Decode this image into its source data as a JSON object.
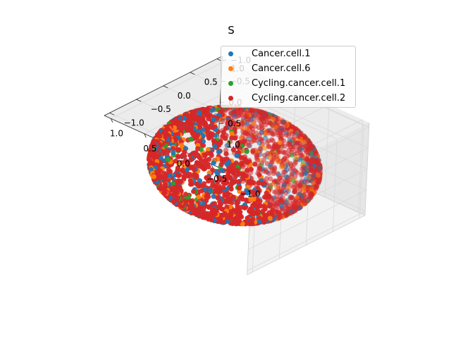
{
  "chart_data": {
    "type": "scatter",
    "projection": "3d",
    "title": "S",
    "xlabel": "",
    "ylabel": "",
    "zlabel": "",
    "xlim": [
      -1.1,
      1.1
    ],
    "ylim": [
      -1.1,
      1.1
    ],
    "zlim": [
      -1.1,
      1.1
    ],
    "x_ticks": [
      "−1.0",
      "−0.5",
      "0.0",
      "0.5",
      "1.0"
    ],
    "y_ticks": [
      "−1.0",
      "−0.5",
      "0.0",
      "0.5",
      "1.0"
    ],
    "z_ticks": [
      "−1.0",
      "−0.5",
      "0.0",
      "0.5",
      "1.0"
    ],
    "grid": true,
    "legend_position": "top-right",
    "shape": "points distributed on the surface of a unit sphere",
    "series": [
      {
        "name": "Cancer.cell.1",
        "color": "#1f77b4"
      },
      {
        "name": "Cancer.cell.6",
        "color": "#ff7f0e"
      },
      {
        "name": "Cycling.cancer.cell.1",
        "color": "#2ca02c"
      },
      {
        "name": "Cycling.cancer.cell.2",
        "color": "#d62728"
      }
    ]
  }
}
